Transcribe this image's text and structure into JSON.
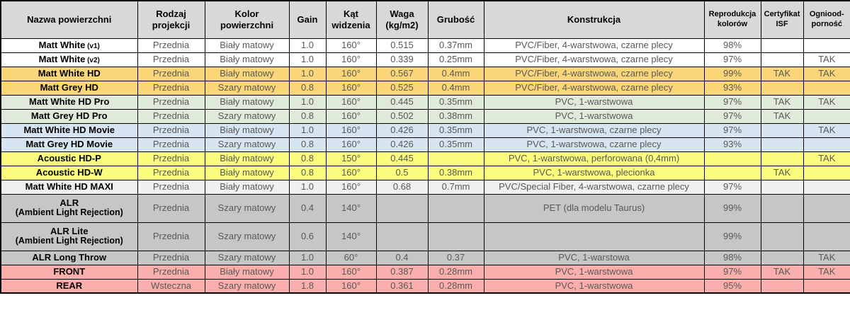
{
  "colors": {
    "header_bg": "#D8D8D8",
    "border": "#000000",
    "body_text": "#595959",
    "name_text": "#000000",
    "group_white": "#FFFFFF",
    "group_orange": "#FAD679",
    "group_green": "#E0EAD9",
    "group_blue": "#D7E4F1",
    "group_yellow": "#FCFC7E",
    "group_lightgray": "#F0F0F0",
    "group_gray": "#C6C6C6",
    "group_pink": "#FAAFAC"
  },
  "table": {
    "columns": [
      {
        "label": "Nazwa powierzchni",
        "small": false
      },
      {
        "label": "Rodzaj\nprojekcji",
        "small": false
      },
      {
        "label": "Kolor\npowierzchni",
        "small": false
      },
      {
        "label": "Gain",
        "small": false
      },
      {
        "label": "Kąt\nwidzenia",
        "small": false
      },
      {
        "label": "Waga\n(kg/m2)",
        "small": false
      },
      {
        "label": "Grubość",
        "small": false
      },
      {
        "label": "Konstrukcja",
        "small": false
      },
      {
        "label": "Reprodukcja\nkolorów",
        "small": true
      },
      {
        "label": "Certyfikat\nISF",
        "small": true
      },
      {
        "label": "Ogniood-\nporność",
        "small": true
      }
    ],
    "rows": [
      {
        "name": "Matt White",
        "name_suffix": "(v1)",
        "name_line2": "",
        "projection": "Przednia",
        "surface_color": "Biały matowy",
        "gain": "1.0",
        "viewing_angle": "160°",
        "weight": "0.515",
        "thickness": "0.37mm",
        "construction": "PVC/Fiber, 4-warstwowa, czarne plecy",
        "color_reproduction": "98%",
        "certyfikat_isf": "",
        "fireproof": "",
        "bg": "#FFFFFF",
        "group_start": true,
        "tall": false
      },
      {
        "name": "Matt White",
        "name_suffix": "(v2)",
        "name_line2": "",
        "projection": "Przednia",
        "surface_color": "Biały matowy",
        "gain": "1.0",
        "viewing_angle": "160°",
        "weight": "0.339",
        "thickness": "0.25mm",
        "construction": "PVC/Fiber, 4-warstwowa, czarne plecy",
        "color_reproduction": "97%",
        "certyfikat_isf": "",
        "fireproof": "TAK",
        "bg": "#FFFFFF",
        "group_start": false,
        "tall": false
      },
      {
        "name": "Matt White HD",
        "name_suffix": "",
        "name_line2": "",
        "projection": "Przednia",
        "surface_color": "Biały matowy",
        "gain": "1.0",
        "viewing_angle": "160°",
        "weight": "0.567",
        "thickness": "0.4mm",
        "construction": "PVC/Fiber, 4-warstwowa, czarne plecy",
        "color_reproduction": "99%",
        "certyfikat_isf": "TAK",
        "fireproof": "TAK",
        "bg": "#FAD679",
        "group_start": true,
        "tall": false
      },
      {
        "name": "Matt Grey HD",
        "name_suffix": "",
        "name_line2": "",
        "projection": "Przednia",
        "surface_color": "Szary matowy",
        "gain": "0.8",
        "viewing_angle": "160°",
        "weight": "0.525",
        "thickness": "0.4mm",
        "construction": "PVC/Fiber, 4-warstwowa, czarne plecy",
        "color_reproduction": "93%",
        "certyfikat_isf": "",
        "fireproof": "",
        "bg": "#FAD679",
        "group_start": false,
        "tall": false
      },
      {
        "name": "Matt White HD Pro",
        "name_suffix": "",
        "name_line2": "",
        "projection": "Przednia",
        "surface_color": "Biały matowy",
        "gain": "1.0",
        "viewing_angle": "160°",
        "weight": "0.445",
        "thickness": "0.35mm",
        "construction": "PVC, 1-warstwowa",
        "color_reproduction": "97%",
        "certyfikat_isf": "TAK",
        "fireproof": "TAK",
        "bg": "#E0EAD9",
        "group_start": true,
        "tall": false
      },
      {
        "name": "Matt Grey HD Pro",
        "name_suffix": "",
        "name_line2": "",
        "projection": "Przednia",
        "surface_color": "Szary matowy",
        "gain": "0.8",
        "viewing_angle": "160°",
        "weight": "0.502",
        "thickness": "0.38mm",
        "construction": "PVC, 1-warstwowa",
        "color_reproduction": "97%",
        "certyfikat_isf": "TAK",
        "fireproof": "",
        "bg": "#E0EAD9",
        "group_start": false,
        "tall": false
      },
      {
        "name": "Matt White HD Movie",
        "name_suffix": "",
        "name_line2": "",
        "projection": "Przednia",
        "surface_color": "Biały matowy",
        "gain": "1.0",
        "viewing_angle": "160°",
        "weight": "0.426",
        "thickness": "0.35mm",
        "construction": "PVC, 1-warstwowa, czarne plecy",
        "color_reproduction": "97%",
        "certyfikat_isf": "",
        "fireproof": "TAK",
        "bg": "#D7E4F1",
        "group_start": true,
        "tall": false
      },
      {
        "name": "Matt Grey HD Movie",
        "name_suffix": "",
        "name_line2": "",
        "projection": "Przednia",
        "surface_color": "Szary matowy",
        "gain": "0.8",
        "viewing_angle": "160°",
        "weight": "0.426",
        "thickness": "0.35mm",
        "construction": "PVC, 1-warstwowa, czarne plecy",
        "color_reproduction": "93%",
        "certyfikat_isf": "",
        "fireproof": "",
        "bg": "#D7E4F1",
        "group_start": false,
        "tall": false
      },
      {
        "name": "Acoustic HD-P",
        "name_suffix": "",
        "name_line2": "",
        "projection": "Przednia",
        "surface_color": "Biały matowy",
        "gain": "0.8",
        "viewing_angle": "150°",
        "weight": "0.445",
        "thickness": "",
        "construction": "PVC, 1-warstwowa, perforowana (0,4mm)",
        "color_reproduction": "",
        "certyfikat_isf": "",
        "fireproof": "TAK",
        "bg": "#FCFC7E",
        "group_start": true,
        "tall": false
      },
      {
        "name": "Acoustic HD-W",
        "name_suffix": "",
        "name_line2": "",
        "projection": "Przednia",
        "surface_color": "Biały matowy",
        "gain": "0.8",
        "viewing_angle": "160°",
        "weight": "0.5",
        "thickness": "0.38mm",
        "construction": "PVC, 1-warstwowa, plecionka",
        "color_reproduction": "",
        "certyfikat_isf": "TAK",
        "fireproof": "",
        "bg": "#FCFC7E",
        "group_start": false,
        "tall": false
      },
      {
        "name": "Matt White HD MAXI",
        "name_suffix": "",
        "name_line2": "",
        "projection": "Przednia",
        "surface_color": "Biały matowy",
        "gain": "1.0",
        "viewing_angle": "160°",
        "weight": "0.68",
        "thickness": "0.7mm",
        "construction": "PVC/Special Fiber, 4-warstwowa, czarne plecy",
        "color_reproduction": "97%",
        "certyfikat_isf": "",
        "fireproof": "",
        "bg": "#F0F0F0",
        "group_start": true,
        "tall": false
      },
      {
        "name": "ALR",
        "name_suffix": "",
        "name_line2": "(Ambient Light Rejection)",
        "projection": "Przednia",
        "surface_color": "Szary matowy",
        "gain": "0.4",
        "viewing_angle": "140°",
        "weight": "",
        "thickness": "",
        "construction": "PET (dla modelu Taurus)",
        "color_reproduction": "99%",
        "certyfikat_isf": "",
        "fireproof": "",
        "bg": "#C6C6C6",
        "group_start": true,
        "tall": true
      },
      {
        "name": "ALR Lite",
        "name_suffix": "",
        "name_line2": "(Ambient Light Rejection)",
        "projection": "Przednia",
        "surface_color": "Szary matowy",
        "gain": "0.6",
        "viewing_angle": "140°",
        "weight": "",
        "thickness": "",
        "construction": "",
        "color_reproduction": "99%",
        "certyfikat_isf": "",
        "fireproof": "",
        "bg": "#C6C6C6",
        "group_start": false,
        "tall": true
      },
      {
        "name": "ALR Long Throw",
        "name_suffix": "",
        "name_line2": "",
        "projection": "Przednia",
        "surface_color": "Szary matowy",
        "gain": "1.0",
        "viewing_angle": "60°",
        "weight": "0.4",
        "thickness": "0.37",
        "construction": "PVC, 1-warstowa",
        "color_reproduction": "98%",
        "certyfikat_isf": "",
        "fireproof": "TAK",
        "bg": "#C6C6C6",
        "group_start": false,
        "tall": false
      },
      {
        "name": "FRONT",
        "name_suffix": "",
        "name_line2": "",
        "projection": "Przednia",
        "surface_color": "Biały matowy",
        "gain": "1.0",
        "viewing_angle": "160°",
        "weight": "0.387",
        "thickness": "0.28mm",
        "construction": "PVC, 1-warstwowa",
        "color_reproduction": "97%",
        "certyfikat_isf": "TAK",
        "fireproof": "TAK",
        "bg": "#FAAFAC",
        "group_start": true,
        "tall": false
      },
      {
        "name": "REAR",
        "name_suffix": "",
        "name_line2": "",
        "projection": "Wsteczna",
        "surface_color": "Szary matowy",
        "gain": "1.8",
        "viewing_angle": "160°",
        "weight": "0.361",
        "thickness": "0.28mm",
        "construction": "PVC, 1-warstwowa",
        "color_reproduction": "95%",
        "certyfikat_isf": "",
        "fireproof": "",
        "bg": "#FAAFAC",
        "group_start": false,
        "tall": false
      }
    ]
  }
}
